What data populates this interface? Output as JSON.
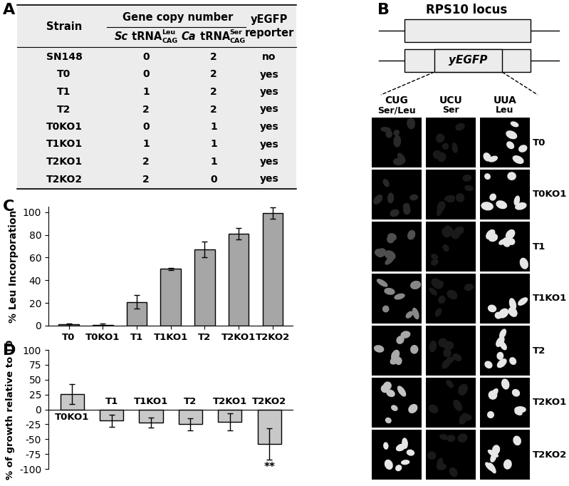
{
  "panel_labels": [
    "A",
    "B",
    "C",
    "D"
  ],
  "table": {
    "header": {
      "strain": "Strain",
      "group": "Gene copy number",
      "columns": [
        {
          "organism": "Sc",
          "gene": "tRNA",
          "sub": "CAG",
          "sup": "Leu"
        },
        {
          "organism": "Ca",
          "gene": "tRNA",
          "sub": "CAG",
          "sup": "Ser"
        }
      ],
      "reporter": "yEGFP reporter"
    },
    "rows": [
      [
        "SN148",
        0,
        2,
        "no"
      ],
      [
        "T0",
        0,
        2,
        "yes"
      ],
      [
        "T1",
        1,
        2,
        "yes"
      ],
      [
        "T2",
        2,
        2,
        "yes"
      ],
      [
        "T0KO1",
        0,
        1,
        "yes"
      ],
      [
        "T1KO1",
        1,
        1,
        "yes"
      ],
      [
        "T2KO1",
        2,
        1,
        "yes"
      ],
      [
        "T2KO2",
        2,
        0,
        "yes"
      ]
    ]
  },
  "diagram": {
    "locus": "RPS10 locus",
    "insert": "yEGFP",
    "columns": [
      {
        "codon": "CUG",
        "amino_acid": "Ser/Leu"
      },
      {
        "codon": "UCU",
        "amino_acid": "Ser"
      },
      {
        "codon": "UUA",
        "amino_acid": "Leu"
      }
    ],
    "rows": [
      "T0",
      "T0KO1",
      "T1",
      "T1KO1",
      "T2",
      "T2KO1",
      "T2KO2"
    ]
  },
  "chart_data": [
    {
      "type": "bar",
      "ylabel": "% Leu Incorporation",
      "categories": [
        "T0",
        "T0KO1",
        "T1",
        "T1KO1",
        "T2",
        "T2KO1",
        "T2KO2"
      ],
      "values": [
        1,
        0.8,
        21,
        50,
        67,
        81,
        99
      ],
      "errors": [
        1,
        1,
        6,
        1,
        7,
        5,
        5
      ],
      "color": "#a6a6a6",
      "ylim": [
        0,
        105
      ],
      "yticks": [
        0,
        20,
        40,
        60,
        80,
        100
      ]
    },
    {
      "type": "bar",
      "ylabel": "% of growth relative to T0",
      "categories": [
        "T0KO1",
        "T1",
        "T1KO1",
        "T2",
        "T2KO1",
        "T2KO2"
      ],
      "values": [
        26,
        -19,
        -22,
        -25,
        -21,
        -58
      ],
      "errors": [
        17,
        10,
        8,
        10,
        14,
        26
      ],
      "color": "#c8c8c8",
      "ylim": [
        -100,
        100
      ],
      "yticks": [
        -100,
        -75,
        -50,
        -25,
        0,
        25,
        50,
        75,
        100
      ],
      "tick_labels": "y",
      "annotations": [
        {
          "category": "T2KO2",
          "text": "**"
        }
      ]
    }
  ]
}
